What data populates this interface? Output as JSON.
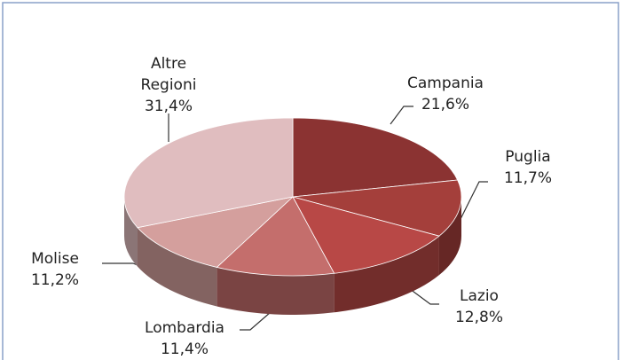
{
  "chart_data": {
    "type": "pie",
    "categories": [
      "Campania",
      "Puglia",
      "Lazio",
      "Lombardia",
      "Molise",
      "Altre Regioni"
    ],
    "values": [
      21.6,
      11.7,
      12.8,
      11.4,
      11.2,
      31.4
    ],
    "value_labels": [
      "21,6%",
      "11,7%",
      "12,8%",
      "11,4%",
      "11,2%",
      "31,4%"
    ],
    "colors": [
      "#8b3332",
      "#a43f3b",
      "#b84846",
      "#c46e6c",
      "#d49f9d",
      "#e0bdbf"
    ]
  }
}
